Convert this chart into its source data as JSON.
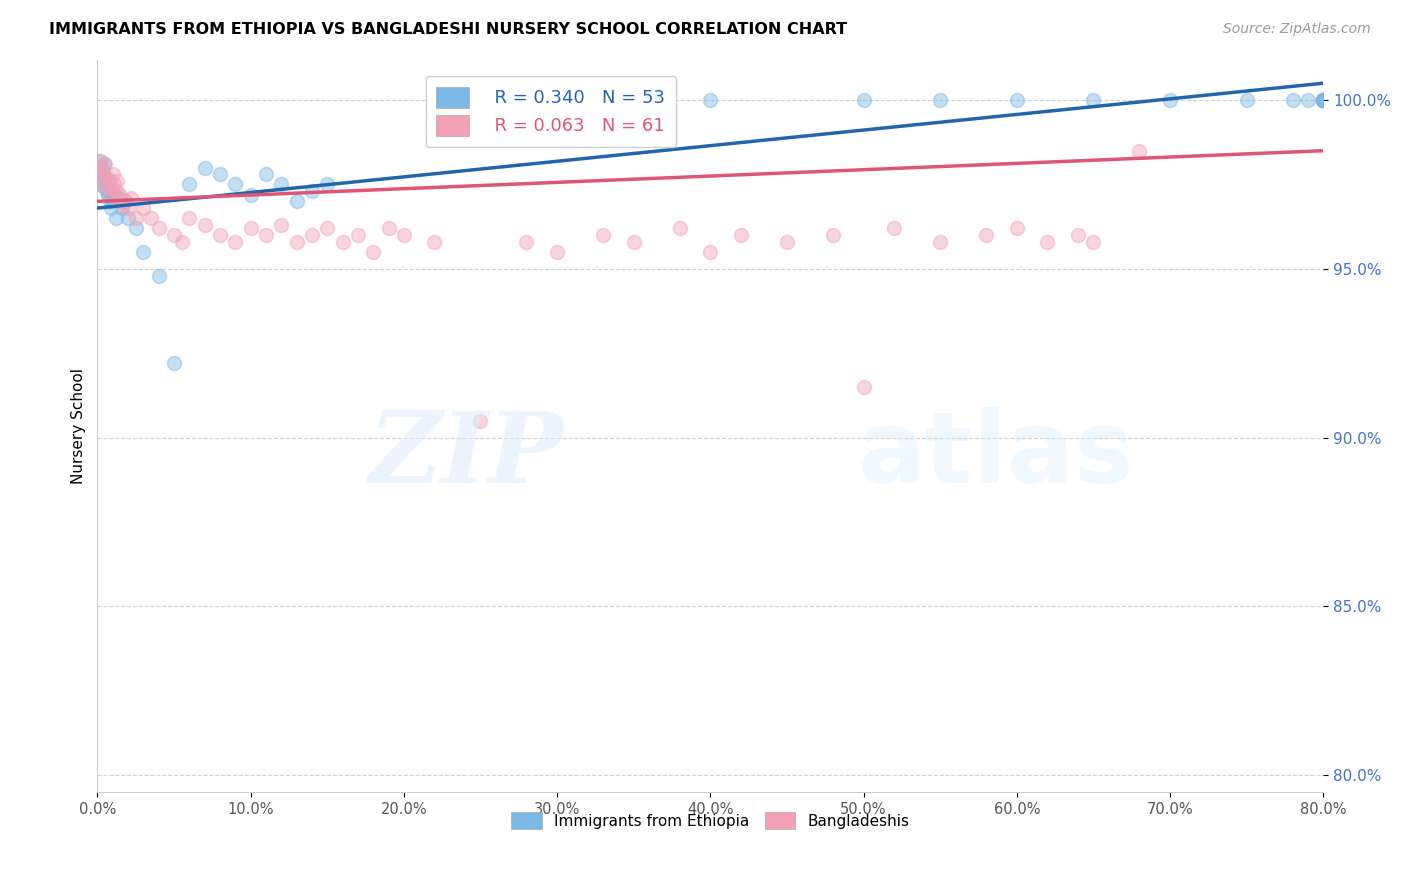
{
  "title": "IMMIGRANTS FROM ETHIOPIA VS BANGLADESHI NURSERY SCHOOL CORRELATION CHART",
  "source": "Source: ZipAtlas.com",
  "ylabel": "Nursery School",
  "yticks": [
    80.0,
    85.0,
    90.0,
    95.0,
    100.0
  ],
  "ytick_labels": [
    "80.0%",
    "85.0%",
    "90.0%",
    "95.0%",
    "100.0%"
  ],
  "xticks": [
    0,
    10,
    20,
    30,
    40,
    50,
    60,
    70,
    80
  ],
  "xmin": 0.0,
  "xmax": 80.0,
  "ymin": 79.5,
  "ymax": 101.2,
  "blue_label": "Immigrants from Ethiopia",
  "pink_label": "Bangladeshis",
  "blue_R": 0.34,
  "blue_N": 53,
  "pink_R": 0.063,
  "pink_N": 61,
  "blue_color": "#7ab8e8",
  "pink_color": "#f4a0b5",
  "blue_line_color": "#2166ac",
  "pink_line_color": "#e05575",
  "blue_scatter_x": [
    0.1,
    0.15,
    0.2,
    0.25,
    0.3,
    0.35,
    0.4,
    0.45,
    0.5,
    0.55,
    0.6,
    0.65,
    0.7,
    0.75,
    0.8,
    0.9,
    1.0,
    1.1,
    1.2,
    1.4,
    1.6,
    1.8,
    2.0,
    2.5,
    3.0,
    4.0,
    5.0,
    6.0,
    7.0,
    8.0,
    9.0,
    10.0,
    11.0,
    12.0,
    13.0,
    14.0,
    15.0,
    30.0,
    40.0,
    50.0,
    55.0,
    60.0,
    65.0,
    70.0,
    75.0,
    78.0,
    79.0,
    80.0,
    80.0,
    80.0,
    80.0,
    80.0,
    80.0
  ],
  "blue_scatter_y": [
    97.8,
    98.2,
    97.5,
    98.0,
    97.8,
    97.9,
    97.6,
    98.1,
    97.4,
    97.7,
    97.3,
    97.6,
    97.2,
    97.5,
    97.0,
    96.8,
    97.0,
    97.2,
    96.5,
    97.1,
    96.8,
    97.0,
    96.5,
    96.2,
    95.5,
    94.8,
    92.2,
    97.5,
    98.0,
    97.8,
    97.5,
    97.2,
    97.8,
    97.5,
    97.0,
    97.3,
    97.5,
    100.0,
    100.0,
    100.0,
    100.0,
    100.0,
    100.0,
    100.0,
    100.0,
    100.0,
    100.0,
    100.0,
    100.0,
    100.0,
    100.0,
    100.0,
    100.0
  ],
  "pink_scatter_x": [
    0.1,
    0.15,
    0.2,
    0.3,
    0.4,
    0.5,
    0.6,
    0.7,
    0.8,
    0.9,
    1.0,
    1.1,
    1.2,
    1.3,
    1.4,
    1.5,
    1.6,
    1.8,
    2.0,
    2.2,
    2.5,
    3.0,
    3.5,
    4.0,
    5.0,
    5.5,
    6.0,
    7.0,
    8.0,
    9.0,
    10.0,
    11.0,
    12.0,
    13.0,
    14.0,
    15.0,
    16.0,
    17.0,
    18.0,
    19.0,
    20.0,
    22.0,
    25.0,
    28.0,
    30.0,
    33.0,
    35.0,
    38.0,
    40.0,
    42.0,
    45.0,
    48.0,
    50.0,
    52.0,
    55.0,
    58.0,
    60.0,
    62.0,
    64.0,
    65.0,
    68.0
  ],
  "pink_scatter_y": [
    98.2,
    97.9,
    98.0,
    97.8,
    97.5,
    98.1,
    97.7,
    97.4,
    97.6,
    97.2,
    97.8,
    97.5,
    97.3,
    97.6,
    97.0,
    97.2,
    96.9,
    97.0,
    96.8,
    97.1,
    96.5,
    96.8,
    96.5,
    96.2,
    96.0,
    95.8,
    96.5,
    96.3,
    96.0,
    95.8,
    96.2,
    96.0,
    96.3,
    95.8,
    96.0,
    96.2,
    95.8,
    96.0,
    95.5,
    96.2,
    96.0,
    95.8,
    90.5,
    95.8,
    95.5,
    96.0,
    95.8,
    96.2,
    95.5,
    96.0,
    95.8,
    96.0,
    91.5,
    96.2,
    95.8,
    96.0,
    96.2,
    95.8,
    96.0,
    95.8,
    98.5
  ],
  "blue_trendline_x": [
    0.0,
    80.0
  ],
  "blue_trendline_y": [
    96.8,
    100.5
  ],
  "pink_trendline_x": [
    0.0,
    80.0
  ],
  "pink_trendline_y": [
    97.0,
    98.5
  ]
}
